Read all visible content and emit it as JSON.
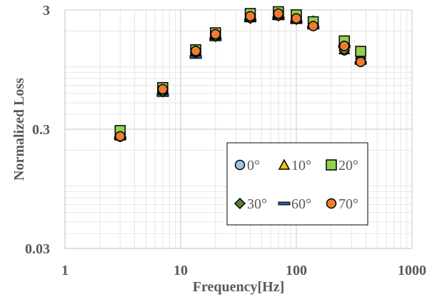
{
  "chart_data": {
    "type": "scatter",
    "xlabel": "Frequency[Hz]",
    "ylabel": "Normalized Loss",
    "x_scale": "log",
    "y_scale": "log",
    "xlim": [
      1,
      1000
    ],
    "ylim": [
      0.03,
      3
    ],
    "x_ticks": [
      "1",
      "10",
      "100",
      "1000"
    ],
    "y_ticks": [
      "0.03",
      "0.3",
      "3"
    ],
    "grid": true,
    "legend_position": "bottom-right",
    "series": [
      {
        "name": "0°",
        "marker": "circle",
        "color": "#9dc3e6",
        "x": [
          3,
          7,
          13.5,
          20,
          40,
          70,
          100,
          140,
          260,
          360
        ],
        "y": [
          0.26,
          0.63,
          1.33,
          1.82,
          2.58,
          2.7,
          2.53,
          2.3,
          1.38,
          1.13
        ]
      },
      {
        "name": "10°",
        "marker": "triangle",
        "color": "#ffc000",
        "x": [
          3,
          7,
          13.5,
          20,
          40,
          70,
          100,
          140,
          260,
          360
        ],
        "y": [
          0.265,
          0.64,
          1.35,
          1.85,
          2.62,
          2.75,
          2.55,
          2.42,
          1.4,
          1.15
        ]
      },
      {
        "name": "20°",
        "marker": "square",
        "color": "#92d050",
        "x": [
          3,
          7,
          13.5,
          20,
          40,
          70,
          100,
          140,
          260,
          360
        ],
        "y": [
          0.292,
          0.67,
          1.39,
          1.93,
          2.8,
          2.9,
          2.73,
          2.39,
          1.65,
          1.35
        ]
      },
      {
        "name": "30°",
        "marker": "diamond",
        "color": "#548235",
        "x": [
          3,
          7,
          13.5,
          20,
          40,
          70,
          100,
          140,
          260,
          360
        ],
        "y": [
          0.26,
          0.62,
          1.32,
          1.8,
          2.55,
          2.68,
          2.5,
          2.3,
          1.38,
          1.18
        ]
      },
      {
        "name": "60°",
        "marker": "dash",
        "color": "#2f5597",
        "x": [
          3,
          7,
          13.5,
          20,
          40,
          70,
          100,
          140,
          260,
          360
        ],
        "y": [
          0.252,
          0.58,
          1.21,
          1.7,
          2.45,
          2.55,
          2.37,
          2.13,
          1.48,
          1.08
        ]
      },
      {
        "name": "70°",
        "marker": "circle",
        "color": "#ed7d31",
        "x": [
          3,
          7,
          13.5,
          20,
          40,
          70,
          100,
          140,
          260,
          360
        ],
        "y": [
          0.262,
          0.65,
          1.36,
          1.88,
          2.66,
          2.8,
          2.55,
          2.2,
          1.5,
          1.1
        ]
      }
    ]
  }
}
